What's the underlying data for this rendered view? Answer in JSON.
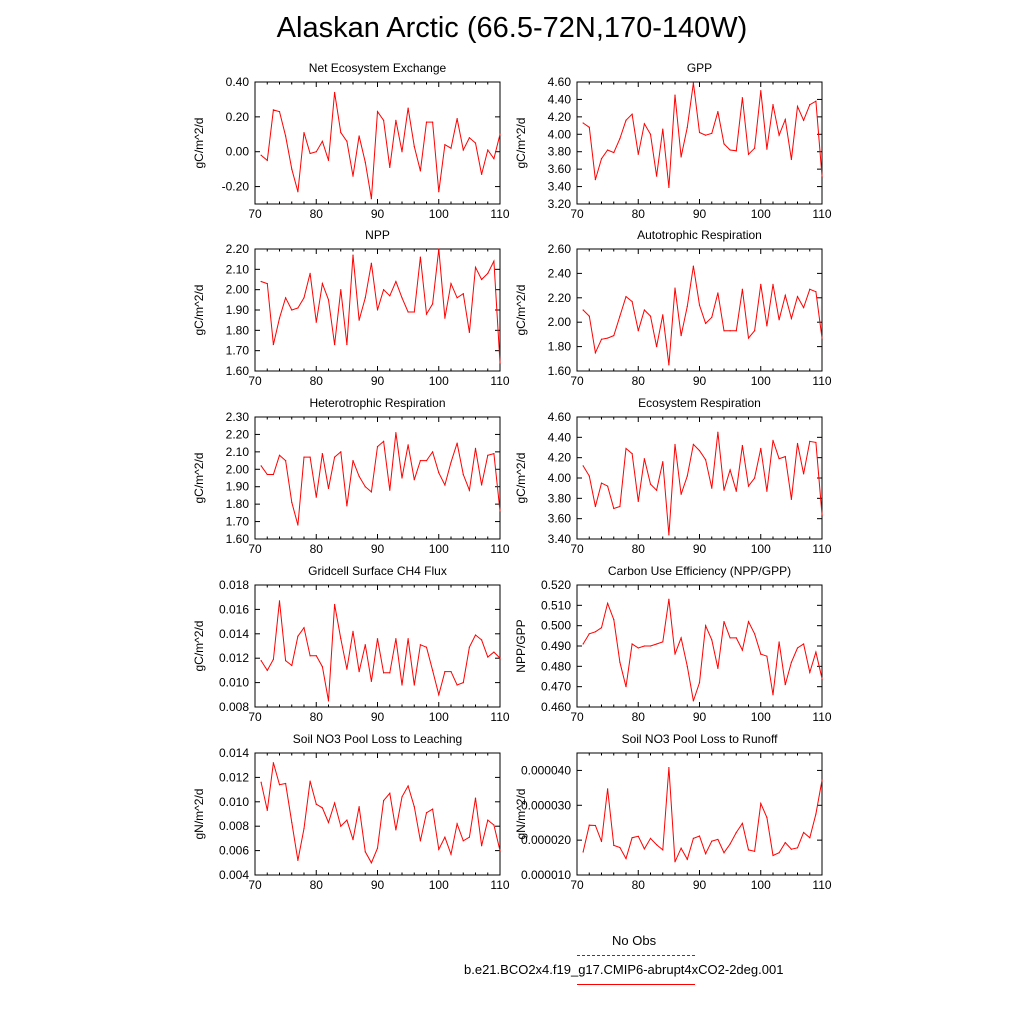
{
  "title": "Alaskan Arctic (66.5-72N,170-140W)",
  "colors": {
    "series": "#ff0000",
    "obs": "#3333cc",
    "axis": "#000000"
  },
  "legend": {
    "obs_label": "No Obs",
    "model_label": "b.e21.BCO2x4.f19_g17.CMIP6-abrupt4xCO2-2deg.001"
  },
  "chart_data": [
    {
      "type": "line",
      "title": "Net Ecosystem Exchange",
      "ylabel": "gC/m^2/d",
      "xlim": [
        70,
        110
      ],
      "ylim": [
        -0.3,
        0.4
      ],
      "xticks": [
        70,
        80,
        90,
        100,
        110
      ],
      "yticks": [
        "0.40",
        "0.20",
        "0.00",
        "-0.20"
      ],
      "ytick_values": [
        0.4,
        0.2,
        0.0,
        -0.2
      ],
      "x": [
        71,
        72,
        73,
        74,
        75,
        76,
        77,
        78,
        79,
        80,
        81,
        82,
        83,
        84,
        85,
        86,
        87,
        88,
        89,
        90,
        91,
        92,
        93,
        94,
        95,
        96,
        97,
        98,
        99,
        100,
        101,
        102,
        103,
        104,
        105,
        106,
        107,
        108,
        109,
        110
      ],
      "values": [
        -0.02,
        -0.05,
        0.24,
        0.23,
        0.09,
        -0.1,
        -0.23,
        0.11,
        -0.01,
        0.0,
        0.06,
        -0.05,
        0.34,
        0.11,
        0.06,
        -0.14,
        0.09,
        -0.06,
        -0.27,
        0.23,
        0.18,
        -0.09,
        0.18,
        0.0,
        0.25,
        0.03,
        -0.11,
        0.17,
        0.17,
        -0.23,
        0.04,
        0.02,
        0.19,
        0.01,
        0.08,
        0.05,
        -0.13,
        0.01,
        -0.04,
        0.1
      ]
    },
    {
      "type": "line",
      "title": "GPP",
      "ylabel": "gC/m^2/d",
      "xlim": [
        70,
        110
      ],
      "ylim": [
        3.2,
        4.6
      ],
      "xticks": [
        70,
        80,
        90,
        100,
        110
      ],
      "yticks": [
        "4.60",
        "4.40",
        "4.20",
        "4.00",
        "3.80",
        "3.60",
        "3.40",
        "3.20"
      ],
      "ytick_values": [
        4.6,
        4.4,
        4.2,
        4.0,
        3.8,
        3.6,
        3.4,
        3.2
      ],
      "x": [
        71,
        72,
        73,
        74,
        75,
        76,
        77,
        78,
        79,
        80,
        81,
        82,
        83,
        84,
        85,
        86,
        87,
        88,
        89,
        90,
        91,
        92,
        93,
        94,
        95,
        96,
        97,
        98,
        99,
        100,
        101,
        102,
        103,
        104,
        105,
        106,
        107,
        108,
        109,
        110
      ],
      "values": [
        4.13,
        4.08,
        3.48,
        3.72,
        3.82,
        3.79,
        3.95,
        4.16,
        4.23,
        3.77,
        4.12,
        4.0,
        3.52,
        4.06,
        3.39,
        4.45,
        3.74,
        4.08,
        4.59,
        4.02,
        3.99,
        4.01,
        4.26,
        3.89,
        3.82,
        3.81,
        4.42,
        3.77,
        3.84,
        4.5,
        3.83,
        4.34,
        3.99,
        4.17,
        3.71,
        4.32,
        4.16,
        4.34,
        4.38,
        3.52
      ]
    },
    {
      "type": "line",
      "title": "NPP",
      "ylabel": "gC/m^2/d",
      "xlim": [
        70,
        110
      ],
      "ylim": [
        1.6,
        2.2
      ],
      "xticks": [
        70,
        80,
        90,
        100,
        110
      ],
      "yticks": [
        "2.20",
        "2.10",
        "2.00",
        "1.90",
        "1.80",
        "1.70",
        "1.60"
      ],
      "ytick_values": [
        2.2,
        2.1,
        2.0,
        1.9,
        1.8,
        1.7,
        1.6
      ],
      "x": [
        71,
        72,
        73,
        74,
        75,
        76,
        77,
        78,
        79,
        80,
        81,
        82,
        83,
        84,
        85,
        86,
        87,
        88,
        89,
        90,
        91,
        92,
        93,
        94,
        95,
        96,
        97,
        98,
        99,
        100,
        101,
        102,
        103,
        104,
        105,
        106,
        107,
        108,
        109,
        110
      ],
      "values": [
        2.04,
        2.03,
        1.73,
        1.86,
        1.96,
        1.9,
        1.91,
        1.96,
        2.08,
        1.84,
        2.03,
        1.95,
        1.73,
        2.0,
        1.73,
        2.17,
        1.85,
        1.96,
        2.13,
        1.9,
        2.0,
        1.97,
        2.04,
        1.96,
        1.89,
        1.89,
        2.16,
        1.88,
        1.93,
        2.2,
        1.86,
        2.03,
        1.96,
        1.98,
        1.79,
        2.11,
        2.05,
        2.08,
        2.14,
        1.64
      ]
    },
    {
      "type": "line",
      "title": "Autotrophic Respiration",
      "ylabel": "gC/m^2/d",
      "xlim": [
        70,
        110
      ],
      "ylim": [
        1.6,
        2.6
      ],
      "xticks": [
        70,
        80,
        90,
        100,
        110
      ],
      "yticks": [
        "2.60",
        "2.40",
        "2.20",
        "2.00",
        "1.80",
        "1.60"
      ],
      "ytick_values": [
        2.6,
        2.4,
        2.2,
        2.0,
        1.8,
        1.6
      ],
      "x": [
        71,
        72,
        73,
        74,
        75,
        76,
        77,
        78,
        79,
        80,
        81,
        82,
        83,
        84,
        85,
        86,
        87,
        88,
        89,
        90,
        91,
        92,
        93,
        94,
        95,
        96,
        97,
        98,
        99,
        100,
        101,
        102,
        103,
        104,
        105,
        106,
        107,
        108,
        109,
        110
      ],
      "values": [
        2.1,
        2.05,
        1.75,
        1.86,
        1.87,
        1.89,
        2.05,
        2.21,
        2.17,
        1.93,
        2.1,
        2.05,
        1.8,
        2.06,
        1.65,
        2.28,
        1.89,
        2.13,
        2.46,
        2.14,
        1.99,
        2.04,
        2.24,
        1.93,
        1.93,
        1.93,
        2.27,
        1.87,
        1.93,
        2.31,
        1.97,
        2.31,
        2.02,
        2.22,
        2.03,
        2.21,
        2.12,
        2.27,
        2.25,
        1.87
      ]
    },
    {
      "type": "line",
      "title": "Heterotrophic Respiration",
      "ylabel": "gC/m^2/d",
      "xlim": [
        70,
        110
      ],
      "ylim": [
        1.6,
        2.3
      ],
      "xticks": [
        70,
        80,
        90,
        100,
        110
      ],
      "yticks": [
        "2.30",
        "2.20",
        "2.10",
        "2.00",
        "1.90",
        "1.80",
        "1.70",
        "1.60"
      ],
      "ytick_values": [
        2.3,
        2.2,
        2.1,
        2.0,
        1.9,
        1.8,
        1.7,
        1.6
      ],
      "x": [
        71,
        72,
        73,
        74,
        75,
        76,
        77,
        78,
        79,
        80,
        81,
        82,
        83,
        84,
        85,
        86,
        87,
        88,
        89,
        90,
        91,
        92,
        93,
        94,
        95,
        96,
        97,
        98,
        99,
        100,
        101,
        102,
        103,
        104,
        105,
        106,
        107,
        108,
        109,
        110
      ],
      "values": [
        2.02,
        1.97,
        1.97,
        2.08,
        2.05,
        1.81,
        1.68,
        2.07,
        2.07,
        1.84,
        2.09,
        1.89,
        2.07,
        2.1,
        1.79,
        2.05,
        1.96,
        1.9,
        1.87,
        2.13,
        2.16,
        1.88,
        2.21,
        1.95,
        2.14,
        1.94,
        2.05,
        2.05,
        2.1,
        1.98,
        1.91,
        2.04,
        2.15,
        1.97,
        1.88,
        2.12,
        1.91,
        2.08,
        2.09,
        1.76
      ]
    },
    {
      "type": "line",
      "title": "Ecosystem Respiration",
      "ylabel": "gC/m^2/d",
      "xlim": [
        70,
        110
      ],
      "ylim": [
        3.4,
        4.6
      ],
      "xticks": [
        70,
        80,
        90,
        100,
        110
      ],
      "yticks": [
        "4.60",
        "4.40",
        "4.20",
        "4.00",
        "3.80",
        "3.60",
        "3.40"
      ],
      "ytick_values": [
        4.6,
        4.4,
        4.2,
        4.0,
        3.8,
        3.6,
        3.4
      ],
      "x": [
        71,
        72,
        73,
        74,
        75,
        76,
        77,
        78,
        79,
        80,
        81,
        82,
        83,
        84,
        85,
        86,
        87,
        88,
        89,
        90,
        91,
        92,
        93,
        94,
        95,
        96,
        97,
        98,
        99,
        100,
        101,
        102,
        103,
        104,
        105,
        106,
        107,
        108,
        109,
        110
      ],
      "values": [
        4.12,
        4.02,
        3.72,
        3.95,
        3.92,
        3.7,
        3.72,
        4.29,
        4.24,
        3.77,
        4.19,
        3.94,
        3.88,
        4.16,
        3.44,
        4.33,
        3.84,
        4.02,
        4.33,
        4.27,
        4.18,
        3.9,
        4.45,
        3.88,
        4.08,
        3.87,
        4.32,
        3.92,
        4.0,
        4.29,
        3.87,
        4.37,
        4.19,
        4.21,
        3.79,
        4.34,
        4.04,
        4.36,
        4.35,
        3.64
      ]
    },
    {
      "type": "line",
      "title": "Gridcell Surface CH4 Flux",
      "ylabel": "gC/m^2/d",
      "xlim": [
        70,
        110
      ],
      "ylim": [
        0.008,
        0.018
      ],
      "xticks": [
        70,
        80,
        90,
        100,
        110
      ],
      "yticks": [
        "0.018",
        "0.016",
        "0.014",
        "0.012",
        "0.010",
        "0.008"
      ],
      "ytick_values": [
        0.018,
        0.016,
        0.014,
        0.012,
        0.01,
        0.008
      ],
      "x": [
        71,
        72,
        73,
        74,
        75,
        76,
        77,
        78,
        79,
        80,
        81,
        82,
        83,
        84,
        85,
        86,
        87,
        88,
        89,
        90,
        91,
        92,
        93,
        94,
        95,
        96,
        97,
        98,
        99,
        100,
        101,
        102,
        103,
        104,
        105,
        106,
        107,
        108,
        109,
        110
      ],
      "values": [
        0.0118,
        0.011,
        0.0119,
        0.0167,
        0.0118,
        0.0114,
        0.0138,
        0.0145,
        0.0122,
        0.0122,
        0.0113,
        0.0085,
        0.0164,
        0.0136,
        0.0111,
        0.0142,
        0.0109,
        0.0131,
        0.0101,
        0.0136,
        0.0108,
        0.0108,
        0.0136,
        0.0098,
        0.0136,
        0.0098,
        0.0131,
        0.0129,
        0.011,
        0.009,
        0.0109,
        0.0109,
        0.0098,
        0.01,
        0.0129,
        0.0139,
        0.0135,
        0.0121,
        0.0125,
        0.012
      ]
    },
    {
      "type": "line",
      "title": "Carbon Use Efficiency (NPP/GPP)",
      "ylabel": "NPP/GPP",
      "xlim": [
        70,
        110
      ],
      "ylim": [
        0.46,
        0.52
      ],
      "xticks": [
        70,
        80,
        90,
        100,
        110
      ],
      "yticks": [
        "0.520",
        "0.510",
        "0.500",
        "0.490",
        "0.480",
        "0.470",
        "0.460"
      ],
      "ytick_values": [
        0.52,
        0.51,
        0.5,
        0.49,
        0.48,
        0.47,
        0.46
      ],
      "x": [
        71,
        72,
        73,
        74,
        75,
        76,
        77,
        78,
        79,
        80,
        81,
        82,
        83,
        84,
        85,
        86,
        87,
        88,
        89,
        90,
        91,
        92,
        93,
        94,
        95,
        96,
        97,
        98,
        99,
        100,
        101,
        102,
        103,
        104,
        105,
        106,
        107,
        108,
        109,
        110
      ],
      "values": [
        0.491,
        0.496,
        0.497,
        0.499,
        0.511,
        0.503,
        0.482,
        0.47,
        0.491,
        0.489,
        0.49,
        0.49,
        0.491,
        0.492,
        0.513,
        0.486,
        0.494,
        0.48,
        0.463,
        0.472,
        0.5,
        0.493,
        0.479,
        0.502,
        0.494,
        0.494,
        0.488,
        0.502,
        0.496,
        0.486,
        0.485,
        0.466,
        0.492,
        0.471,
        0.482,
        0.489,
        0.491,
        0.477,
        0.487,
        0.474
      ]
    },
    {
      "type": "line",
      "title": "Soil NO3 Pool Loss to Leaching",
      "ylabel": "gN/m^2/d",
      "xlim": [
        70,
        110
      ],
      "ylim": [
        0.004,
        0.014
      ],
      "xticks": [
        70,
        80,
        90,
        100,
        110
      ],
      "yticks": [
        "0.014",
        "0.012",
        "0.010",
        "0.008",
        "0.006",
        "0.004"
      ],
      "ytick_values": [
        0.014,
        0.012,
        0.01,
        0.008,
        0.006,
        0.004
      ],
      "x": [
        71,
        72,
        73,
        74,
        75,
        76,
        77,
        78,
        79,
        80,
        81,
        82,
        83,
        84,
        85,
        86,
        87,
        88,
        89,
        90,
        91,
        92,
        93,
        94,
        95,
        96,
        97,
        98,
        99,
        100,
        101,
        102,
        103,
        104,
        105,
        106,
        107,
        108,
        109,
        110
      ],
      "values": [
        0.0116,
        0.0093,
        0.0132,
        0.0114,
        0.0115,
        0.0083,
        0.0052,
        0.0078,
        0.0117,
        0.0098,
        0.0095,
        0.0083,
        0.0099,
        0.008,
        0.0085,
        0.0069,
        0.0096,
        0.0059,
        0.005,
        0.0062,
        0.0101,
        0.0107,
        0.0077,
        0.0104,
        0.0113,
        0.0096,
        0.0068,
        0.0091,
        0.0094,
        0.0061,
        0.0071,
        0.0057,
        0.0082,
        0.0068,
        0.0071,
        0.0103,
        0.0064,
        0.0085,
        0.0081,
        0.006
      ]
    },
    {
      "type": "line",
      "title": "Soil NO3 Pool Loss to Runoff",
      "ylabel": "gN/m^2/d",
      "xlim": [
        70,
        110
      ],
      "ylim": [
        1e-05,
        4.5e-05
      ],
      "xticks": [
        70,
        80,
        90,
        100,
        110
      ],
      "yticks": [
        "0.000040",
        "0.000030",
        "0.000020",
        "0.000010"
      ],
      "ytick_values": [
        4e-05,
        3e-05,
        2e-05,
        1e-05
      ],
      "x": [
        71,
        72,
        73,
        74,
        75,
        76,
        77,
        78,
        79,
        80,
        81,
        82,
        83,
        84,
        85,
        86,
        87,
        88,
        89,
        90,
        91,
        92,
        93,
        94,
        95,
        96,
        97,
        98,
        99,
        100,
        101,
        102,
        103,
        104,
        105,
        106,
        107,
        108,
        109,
        110
      ],
      "values": [
        1.66e-05,
        2.43e-05,
        2.42e-05,
        1.96e-05,
        3.47e-05,
        1.85e-05,
        1.79e-05,
        1.47e-05,
        2.07e-05,
        2.11e-05,
        1.75e-05,
        2.05e-05,
        1.87e-05,
        1.72e-05,
        4.08e-05,
        1.38e-05,
        1.77e-05,
        1.45e-05,
        2.05e-05,
        2.12e-05,
        1.61e-05,
        1.97e-05,
        2.02e-05,
        1.64e-05,
        1.89e-05,
        2.22e-05,
        2.48e-05,
        1.72e-05,
        1.68e-05,
        3.05e-05,
        2.65e-05,
        1.56e-05,
        1.64e-05,
        1.93e-05,
        1.74e-05,
        1.78e-05,
        2.22e-05,
        2.07e-05,
        2.75e-05,
        3.72e-05
      ]
    }
  ]
}
